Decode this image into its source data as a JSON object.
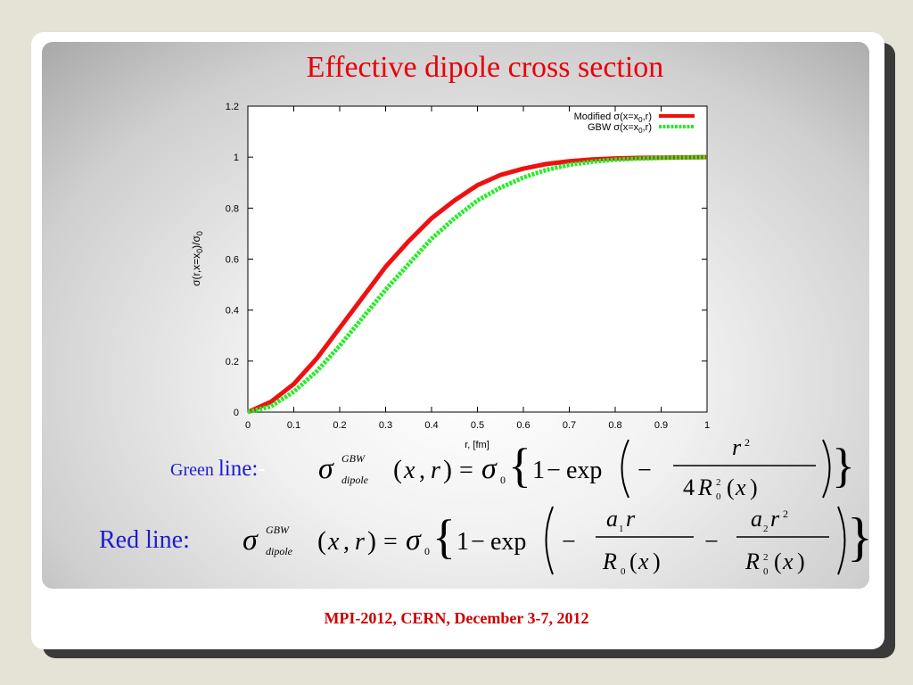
{
  "slide": {
    "title": "Effective  dipole cross section",
    "footer": "MPI-2012, CERN, December 3-7, 2012",
    "green_label_small": "Green ",
    "green_label_big": "line:",
    "green_label_dash": "-",
    "red_label": "Red line:"
  },
  "colors": {
    "title": "#e8000b",
    "red_curve": "#ee1111",
    "green_curve": "#22ee22",
    "label_blue": "#1c1ccf",
    "footer": "#cc0000"
  },
  "chart_data": {
    "type": "line",
    "title": "",
    "xlabel": "r, [fm]",
    "ylabel": "σ(r,x=x0)/σ0",
    "xlim": [
      0,
      1
    ],
    "ylim": [
      0,
      1.2
    ],
    "x_ticks": [
      "0",
      "0.1",
      "0.2",
      "0.3",
      "0.4",
      "0.5",
      "0.6",
      "0.7",
      "0.8",
      "0.9",
      "1"
    ],
    "y_ticks": [
      "0",
      "0.2",
      "0.4",
      "0.6",
      "0.8",
      "1",
      "1.2"
    ],
    "grid": false,
    "legend_position": "top-right",
    "x": [
      0,
      0.05,
      0.1,
      0.15,
      0.2,
      0.25,
      0.3,
      0.35,
      0.4,
      0.45,
      0.5,
      0.55,
      0.6,
      0.65,
      0.7,
      0.75,
      0.8,
      0.85,
      0.9,
      0.95,
      1.0
    ],
    "series": [
      {
        "name": "Modified σ(x=x0,r)",
        "style": "solid",
        "color": "#ee1111",
        "values": [
          0,
          0.04,
          0.11,
          0.21,
          0.33,
          0.45,
          0.57,
          0.67,
          0.76,
          0.83,
          0.89,
          0.93,
          0.955,
          0.973,
          0.984,
          0.991,
          0.995,
          0.997,
          0.998,
          0.999,
          1.0
        ]
      },
      {
        "name": "GBW σ(x=x0,r)",
        "style": "dotted",
        "color": "#22ee22",
        "values": [
          0,
          0.022,
          0.08,
          0.16,
          0.26,
          0.37,
          0.48,
          0.58,
          0.68,
          0.76,
          0.83,
          0.88,
          0.92,
          0.95,
          0.97,
          0.982,
          0.99,
          0.994,
          0.997,
          0.999,
          1.0
        ]
      }
    ]
  }
}
